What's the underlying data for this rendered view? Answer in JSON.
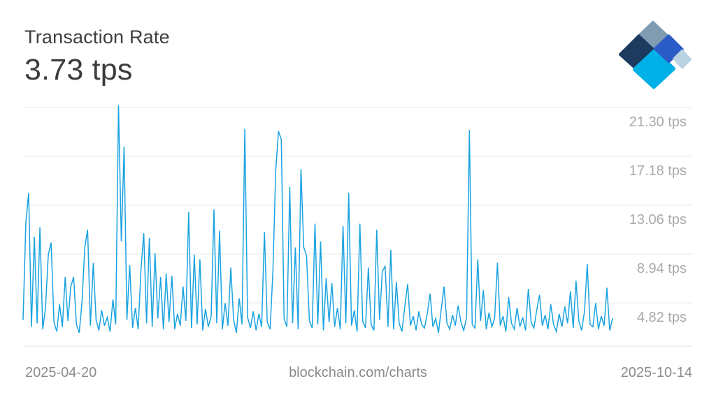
{
  "header": {
    "title": "Transaction Rate",
    "current_value": "3.73 tps"
  },
  "logo": {
    "name": "blockchain-logo",
    "colors": {
      "slate": "#7f9cb2",
      "navy": "#1d3a5f",
      "cyan": "#00b1e8",
      "royal": "#2b5bc7",
      "pale": "#b9d3e2"
    }
  },
  "footer": {
    "start_date": "2025-04-20",
    "watermark": "blockchain.com/charts",
    "end_date": "2025-10-14"
  },
  "chart_data": {
    "type": "line",
    "title": "Transaction Rate",
    "unit": "tps",
    "current_value": 3.73,
    "x_start": "2025-04-20",
    "x_end": "2025-10-14",
    "legend": "none",
    "grid": "horizontal",
    "line_color": "#1aa3e1",
    "grid_color": "#e9e9e9",
    "axis_floor_color": "#e3e3e3",
    "tick_label_color": "#a9a9a9",
    "y_ticks": [
      "21.30 tps",
      "17.18 tps",
      "13.06 tps",
      "8.94 tps",
      "4.82 tps"
    ],
    "y_tick_values": [
      21.3,
      17.18,
      13.06,
      8.94,
      4.82
    ],
    "ylim": [
      1.1,
      22.6
    ],
    "values": [
      3.4,
      11.6,
      14.1,
      2.8,
      10.4,
      3.1,
      11.2,
      2.6,
      4.4,
      8.9,
      9.9,
      3.2,
      2.4,
      4.7,
      2.8,
      7.0,
      3.3,
      6.2,
      7.0,
      3.0,
      2.3,
      4.9,
      9.5,
      11.0,
      2.9,
      8.2,
      3.4,
      2.5,
      4.2,
      2.9,
      3.6,
      2.4,
      5.1,
      3.0,
      21.5,
      10.0,
      18.0,
      3.4,
      8.0,
      2.7,
      4.4,
      2.6,
      7.6,
      10.7,
      3.1,
      10.3,
      2.8,
      9.0,
      3.5,
      7.0,
      2.6,
      7.3,
      3.2,
      7.1,
      2.6,
      3.9,
      2.9,
      6.2,
      3.3,
      12.5,
      2.7,
      8.9,
      3.0,
      8.5,
      2.5,
      4.3,
      2.8,
      3.7,
      12.7,
      3.1,
      10.9,
      2.6,
      4.8,
      2.9,
      7.8,
      3.4,
      2.3,
      5.2,
      3.0,
      19.5,
      3.6,
      2.7,
      4.1,
      2.5,
      3.9,
      2.8,
      10.8,
      3.2,
      2.6,
      7.5,
      15.9,
      19.3,
      18.6,
      3.5,
      2.8,
      14.6,
      3.1,
      9.5,
      2.6,
      16.1,
      9.5,
      8.8,
      3.3,
      2.7,
      11.5,
      3.0,
      10.0,
      2.5,
      6.9,
      3.2,
      6.5,
      2.8,
      4.4,
      2.6,
      11.3,
      3.1,
      14.1,
      2.9,
      4.2,
      2.4,
      11.5,
      3.3,
      2.7,
      7.8,
      3.0,
      2.5,
      11.0,
      3.4,
      7.5,
      7.9,
      2.8,
      9.3,
      2.6,
      6.6,
      3.1,
      2.4,
      4.5,
      6.4,
      2.9,
      3.7,
      2.5,
      4.1,
      3.0,
      2.7,
      3.9,
      5.6,
      2.8,
      3.5,
      2.3,
      4.3,
      6.2,
      3.1,
      2.6,
      3.8,
      2.9,
      4.6,
      3.2,
      2.5,
      3.6,
      19.4,
      3.0,
      2.7,
      8.5,
      3.3,
      5.9,
      2.6,
      4.0,
      2.8,
      3.5,
      8.2,
      2.9,
      3.7,
      2.4,
      5.3,
      3.1,
      2.6,
      4.4,
      2.8,
      3.6,
      2.5,
      6.0,
      3.2,
      2.7,
      4.2,
      5.5,
      2.9,
      3.8,
      2.6,
      4.7,
      3.0,
      2.4,
      3.9,
      2.8,
      4.5,
      3.1,
      5.8,
      2.7,
      6.7,
      3.3,
      2.5,
      4.1,
      8.1,
      3.0,
      2.8,
      4.8,
      2.6,
      3.7,
      2.9,
      6.1,
      2.5,
      3.5
    ]
  }
}
